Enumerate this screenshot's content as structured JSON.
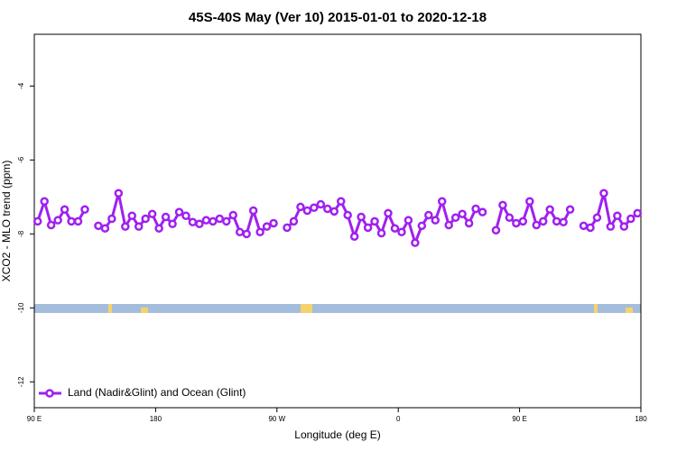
{
  "chart_data": {
    "type": "line",
    "title": "45S-40S May (Ver 10)   2015-01-01 to 2020-12-18",
    "x_label": "Longitude (deg E)",
    "y_label": "XCO2 - MLO trend (ppm)",
    "x": [
      92.5,
      97.5,
      102.5,
      107.5,
      112.5,
      117.5,
      122.5,
      127.5,
      132.5,
      137.5,
      142.5,
      147.5,
      152.5,
      157.5,
      162.5,
      167.5,
      172.5,
      177.5,
      182.5,
      187.5,
      192.5,
      197.5,
      202.5,
      207.5,
      212.5,
      217.5,
      222.5,
      227.5,
      232.5,
      237.5,
      242.5,
      247.5,
      252.5,
      257.5,
      262.5,
      267.5,
      272.5,
      277.5,
      282.5,
      287.5,
      292.5,
      297.5,
      302.5,
      307.5,
      312.5,
      317.5,
      322.5,
      327.5,
      332.5,
      337.5,
      342.5,
      347.5,
      352.5,
      357.5,
      362.5,
      367.5,
      372.5,
      377.5,
      382.5,
      387.5,
      392.5,
      397.5,
      402.5,
      407.5,
      412.5,
      417.5,
      422.5,
      427.5,
      432.5,
      437.5,
      442.5,
      447.5,
      452.5,
      457.5,
      462.5,
      467.5,
      472.5,
      477.5,
      482.5,
      487.5,
      492.5,
      497.5,
      502.5,
      507.5,
      512.5,
      517.5,
      522.5,
      527.5,
      532.5,
      537.5
    ],
    "series": [
      {
        "name": "Land (Nadir&Glint) and Ocean (Glint)",
        "color": "#a020f0",
        "values": [
          -7.66,
          -7.12,
          -7.76,
          -7.63,
          -7.34,
          -7.66,
          -7.66,
          -7.34,
          null,
          -7.78,
          -7.85,
          -7.59,
          -6.9,
          -7.8,
          -7.51,
          -7.8,
          -7.59,
          -7.46,
          -7.85,
          -7.54,
          -7.73,
          -7.41,
          -7.51,
          -7.68,
          -7.73,
          -7.63,
          -7.66,
          -7.59,
          -7.66,
          -7.49,
          -7.95,
          -8.0,
          -7.37,
          -7.95,
          -7.8,
          -7.71,
          null,
          -7.83,
          -7.66,
          -7.27,
          -7.37,
          -7.29,
          -7.2,
          -7.32,
          -7.39,
          -7.12,
          -7.49,
          -8.07,
          -7.54,
          -7.83,
          -7.66,
          -7.98,
          -7.44,
          -7.85,
          -7.95,
          -7.63,
          -8.24,
          -7.78,
          -7.49,
          -7.63,
          -7.12,
          -7.76,
          -7.56,
          -7.46,
          -7.71,
          -7.32,
          -7.41,
          null,
          -7.9,
          -7.22,
          -7.56,
          -7.71,
          -7.66,
          -7.12,
          -7.76,
          -7.66,
          -7.34,
          -7.66,
          -7.68,
          -7.34,
          null,
          -7.78,
          -7.83,
          -7.56,
          -6.9,
          -7.8,
          -7.51,
          -7.8,
          -7.59,
          -7.44
        ]
      }
    ],
    "xlim": [
      90,
      540
    ],
    "xticks": [
      {
        "value": 90,
        "label": "90 E"
      },
      {
        "value": 180,
        "label": "180"
      },
      {
        "value": 270,
        "label": "90 W"
      },
      {
        "value": 360,
        "label": "0"
      },
      {
        "value": 450,
        "label": "90 E"
      },
      {
        "value": 540,
        "label": "180"
      }
    ],
    "ylim": [
      -12.7,
      -2.6
    ],
    "yticks": [
      -4,
      -6,
      -8,
      -10,
      -12
    ],
    "legend": "bottom-left"
  }
}
